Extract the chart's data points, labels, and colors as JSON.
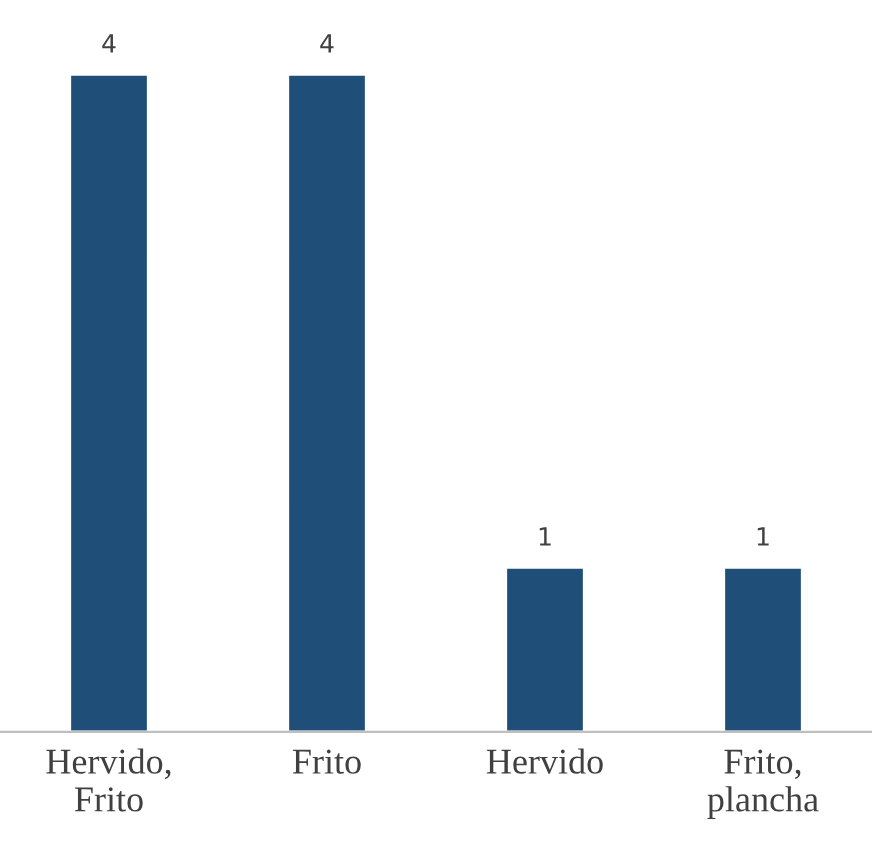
{
  "chart_data": {
    "type": "bar",
    "categories": [
      "Hervido,\nFrito",
      "Frito",
      "Hervido",
      "Frito,\nplancha"
    ],
    "values": [
      4,
      4,
      1,
      1
    ],
    "color": "#1f4e79",
    "data_labels": true,
    "grid": false,
    "legend": false
  }
}
